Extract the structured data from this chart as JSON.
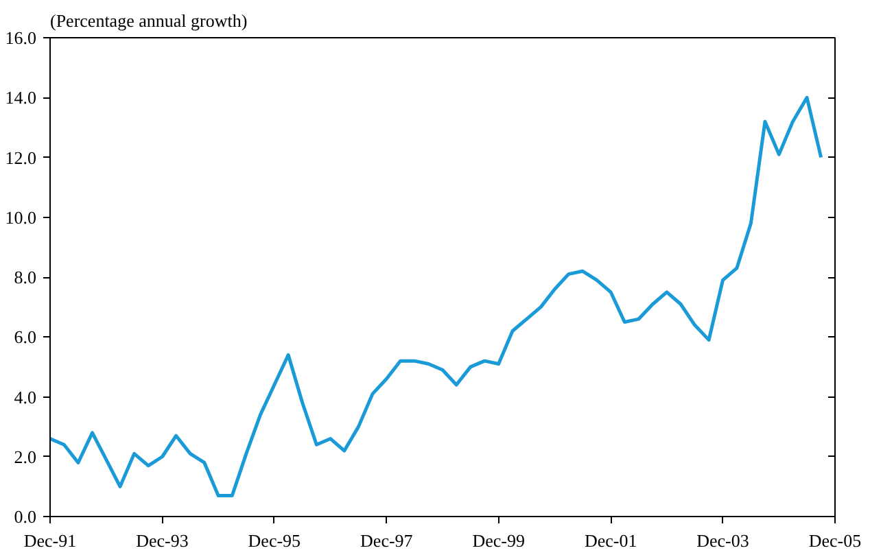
{
  "chart_data": {
    "type": "line",
    "ylabel": "(Percentage annual growth)",
    "x": [
      "1991-12",
      "1992-03",
      "1992-06",
      "1992-09",
      "1992-12",
      "1993-03",
      "1993-06",
      "1993-09",
      "1993-12",
      "1994-03",
      "1994-06",
      "1994-09",
      "1994-12",
      "1995-03",
      "1995-06",
      "1995-09",
      "1995-12",
      "1996-03",
      "1996-06",
      "1996-09",
      "1996-12",
      "1997-03",
      "1997-06",
      "1997-09",
      "1997-12",
      "1998-03",
      "1998-06",
      "1998-09",
      "1998-12",
      "1999-03",
      "1999-06",
      "1999-09",
      "1999-12",
      "2000-03",
      "2000-06",
      "2000-09",
      "2000-12",
      "2001-03",
      "2001-06",
      "2001-09",
      "2001-12",
      "2002-03",
      "2002-06",
      "2002-09",
      "2002-12",
      "2003-03",
      "2003-06",
      "2003-09",
      "2003-12",
      "2004-03",
      "2004-06",
      "2004-09",
      "2004-12",
      "2005-03",
      "2005-06",
      "2005-09"
    ],
    "series": [
      {
        "color": "#1a9ad6",
        "values": [
          2.6,
          2.4,
          1.8,
          2.8,
          1.9,
          1.0,
          2.1,
          1.7,
          2.0,
          2.7,
          2.1,
          1.8,
          0.7,
          0.7,
          2.1,
          3.4,
          4.4,
          5.4,
          3.8,
          2.4,
          2.6,
          2.2,
          3.0,
          4.1,
          4.6,
          5.2,
          5.2,
          5.1,
          4.9,
          4.4,
          5.0,
          5.2,
          5.1,
          6.2,
          6.6,
          7.0,
          7.6,
          8.1,
          8.2,
          7.9,
          7.5,
          6.5,
          6.6,
          7.1,
          7.5,
          7.1,
          6.4,
          5.9,
          7.9,
          8.3,
          9.8,
          13.2,
          12.1,
          13.2,
          14.0,
          12.0
        ]
      }
    ],
    "xlim": [
      "1991-12",
      "2005-12"
    ],
    "xticks": [
      {
        "value": "1991-12",
        "label": "Dec-91"
      },
      {
        "value": "1993-12",
        "label": "Dec-93"
      },
      {
        "value": "1995-12",
        "label": "Dec-95"
      },
      {
        "value": "1997-12",
        "label": "Dec-97"
      },
      {
        "value": "1999-12",
        "label": "Dec-99"
      },
      {
        "value": "2001-12",
        "label": "Dec-01"
      },
      {
        "value": "2003-12",
        "label": "Dec-03"
      },
      {
        "value": "2005-12",
        "label": "Dec-05"
      }
    ],
    "ylim": [
      0,
      16
    ],
    "yticks": [
      {
        "value": 0,
        "label": "0.0"
      },
      {
        "value": 2,
        "label": "2.0"
      },
      {
        "value": 4,
        "label": "4.0"
      },
      {
        "value": 6,
        "label": "6.0"
      },
      {
        "value": 8,
        "label": "8.0"
      },
      {
        "value": 10,
        "label": "10.0"
      },
      {
        "value": 12,
        "label": "12.0"
      },
      {
        "value": 14,
        "label": "14.0"
      },
      {
        "value": 16,
        "label": "16.0"
      }
    ],
    "grid": false,
    "marker": "none",
    "line_style": "solid"
  }
}
